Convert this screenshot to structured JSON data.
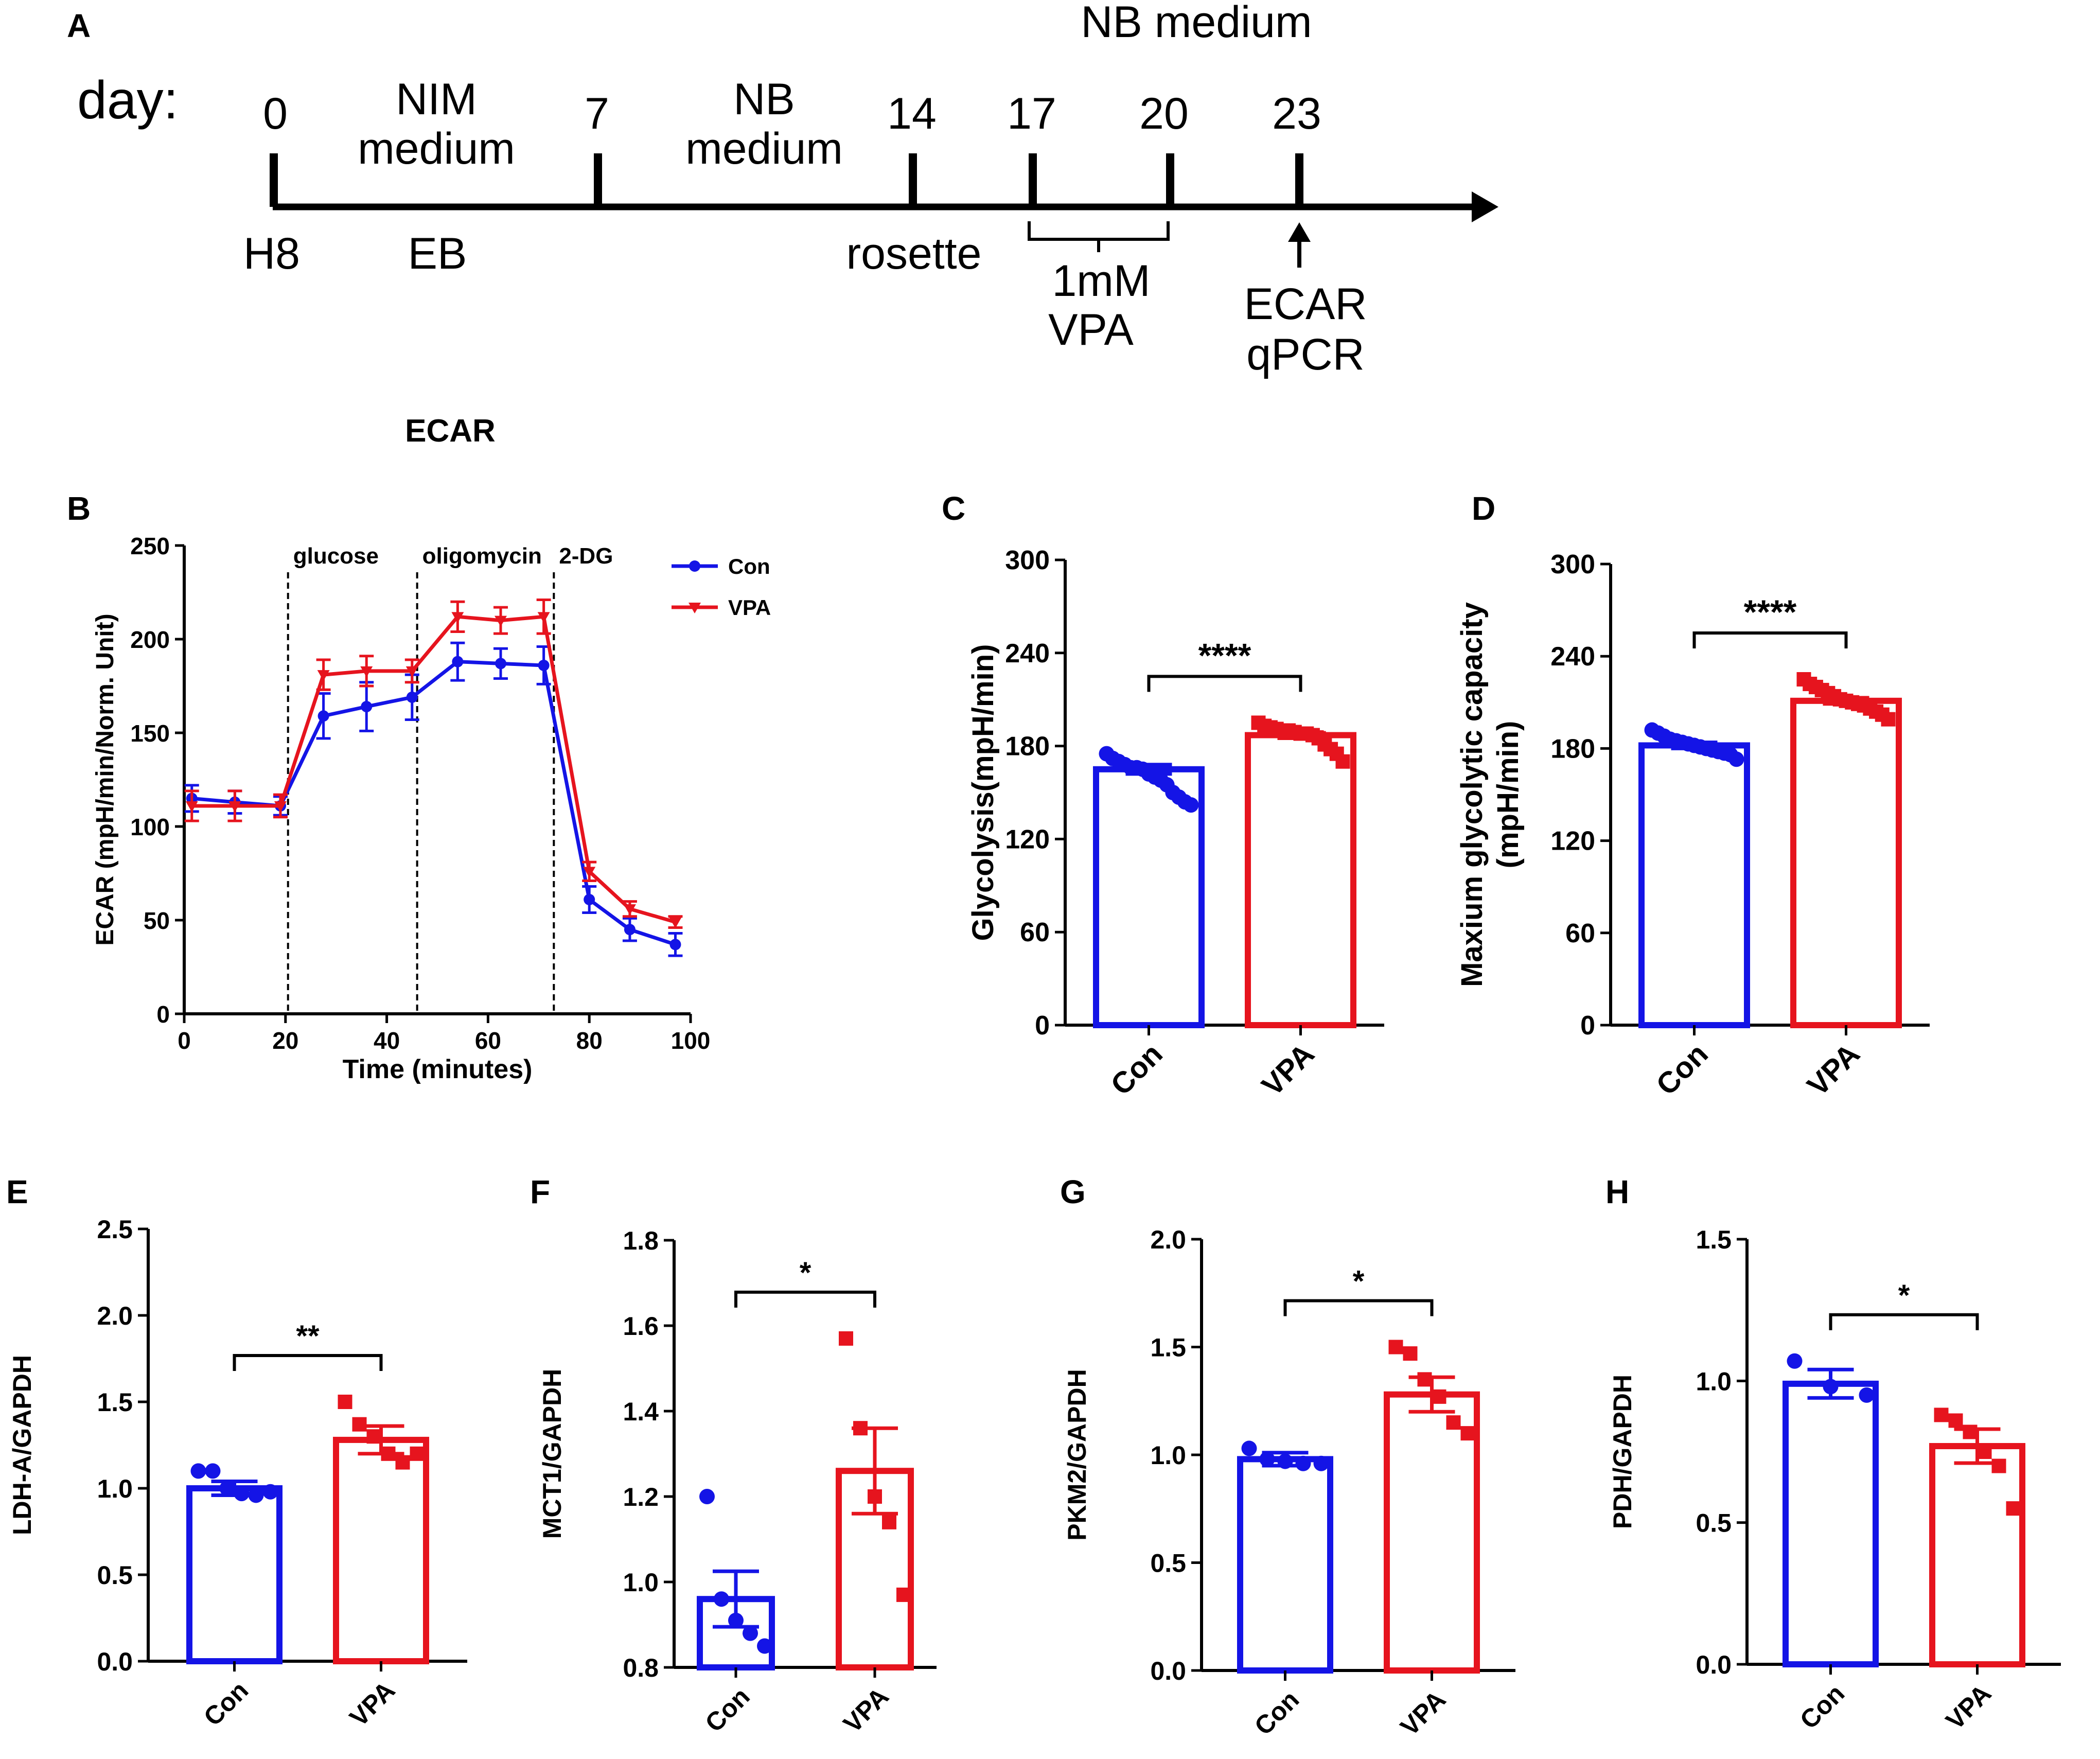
{
  "colors": {
    "con": "#1414e6",
    "vpa": "#e6141e",
    "axis": "#000000"
  },
  "panel_labels": [
    "A",
    "B",
    "C",
    "D",
    "E",
    "F",
    "G",
    "H"
  ],
  "section_title": "ECAR",
  "timeline": {
    "day_label": "day:",
    "days": [
      "0",
      "7",
      "14",
      "17",
      "20",
      "23"
    ],
    "nim_medium": [
      "NIM",
      "medium"
    ],
    "nb_medium_mid": [
      "NB",
      "medium"
    ],
    "nb_medium_top": "NB medium",
    "below_labels": [
      "H8",
      "EB",
      "rosette"
    ],
    "treatment": [
      "1mM",
      "VPA"
    ],
    "assays": [
      "ECAR",
      "qPCR"
    ]
  },
  "chart_data": [
    {
      "panel": "B",
      "type": "line",
      "xlabel": "Time (minutes)",
      "ylabel": "ECAR (mpH/min/Norm. Unit)",
      "xlim": [
        0,
        100
      ],
      "ylim": [
        0,
        250
      ],
      "xticks": [
        0,
        20,
        40,
        60,
        80,
        100
      ],
      "yticks": [
        0,
        50,
        100,
        150,
        200,
        250
      ],
      "x": [
        1.5,
        10,
        19,
        27.5,
        36,
        45,
        54,
        62.5,
        71,
        80,
        88,
        97
      ],
      "series": [
        {
          "name": "Con",
          "values": [
            115,
            113,
            111,
            159,
            164,
            169,
            188,
            187,
            186,
            61,
            45,
            37
          ],
          "errors": [
            7,
            6,
            5,
            12,
            13,
            12,
            10,
            8,
            10,
            7,
            6,
            6
          ]
        },
        {
          "name": "VPA",
          "values": [
            111,
            111,
            111,
            181,
            183,
            183,
            212,
            210,
            212,
            76,
            56,
            49
          ],
          "errors": [
            8,
            8,
            6,
            8,
            8,
            6,
            8,
            7,
            9,
            5,
            4,
            3
          ]
        }
      ],
      "annotations": [
        {
          "label": "glucose",
          "x": 20.5
        },
        {
          "label": "oligomycin",
          "x": 46
        },
        {
          "label": "2-DG",
          "x": 73
        }
      ]
    },
    {
      "panel": "C",
      "type": "bar",
      "categories": [
        "Con",
        "VPA"
      ],
      "values": [
        165,
        187
      ],
      "errors": [
        3,
        2
      ],
      "ylabel": "Glycolysis(mpH/min)",
      "ylim": [
        0,
        300
      ],
      "yticks": [
        0,
        60,
        120,
        180,
        240,
        300
      ],
      "significance": "****",
      "points": [
        [
          175,
          172,
          170,
          168,
          166,
          166,
          165,
          162,
          160,
          158,
          155,
          150,
          147,
          144,
          142
        ],
        [
          195,
          193,
          192,
          191,
          190,
          190,
          189,
          188,
          188,
          187,
          185,
          181,
          178,
          175,
          170
        ]
      ]
    },
    {
      "panel": "D",
      "type": "bar",
      "categories": [
        "Con",
        "VPA"
      ],
      "values": [
        182,
        211
      ],
      "errors": [
        2,
        2
      ],
      "ylabel": "Maxium glycolytic capacity (mpH/min)",
      "ylim": [
        0,
        300
      ],
      "yticks": [
        0,
        60,
        120,
        180,
        240,
        300
      ],
      "significance": "****",
      "points": [
        [
          192,
          190,
          188,
          186,
          185,
          184,
          183,
          182,
          181,
          180,
          179,
          178,
          177,
          176,
          173
        ],
        [
          225,
          222,
          220,
          218,
          216,
          214,
          212,
          211,
          210,
          209,
          208,
          206,
          204,
          202,
          199
        ]
      ]
    },
    {
      "panel": "E",
      "type": "bar",
      "categories": [
        "Con",
        "VPA"
      ],
      "values": [
        1.0,
        1.28
      ],
      "errors": [
        0.04,
        0.08
      ],
      "ylabel": "LDH-A/GAPDH",
      "ylim": [
        0,
        2.5
      ],
      "yticks": [
        "0.0",
        "0.5",
        "1.0",
        "1.5",
        "2.0",
        "2.5"
      ],
      "significance": "**",
      "points": [
        [
          1.1,
          1.1,
          1.0,
          0.97,
          0.96,
          0.98
        ],
        [
          1.5,
          1.37,
          1.3,
          1.2,
          1.15,
          1.2
        ]
      ]
    },
    {
      "panel": "F",
      "type": "bar",
      "categories": [
        "Con",
        "VPA"
      ],
      "values": [
        0.96,
        1.26
      ],
      "errors": [
        0.065,
        0.1
      ],
      "ylabel": "MCT1/GAPDH",
      "ylim": [
        0.8,
        1.8
      ],
      "yticks": [
        "0.8",
        "1.0",
        "1.2",
        "1.4",
        "1.6",
        "1.8"
      ],
      "significance": "*",
      "points": [
        [
          1.2,
          0.96,
          0.91,
          0.88,
          0.85
        ],
        [
          1.57,
          1.36,
          1.2,
          1.14,
          0.97
        ]
      ]
    },
    {
      "panel": "G",
      "type": "bar",
      "categories": [
        "Con",
        "VPA"
      ],
      "values": [
        0.98,
        1.28
      ],
      "errors": [
        0.03,
        0.08
      ],
      "ylabel": "PKM2/GAPDH",
      "ylim": [
        0,
        2.0
      ],
      "yticks": [
        "0.0",
        "0.5",
        "1.0",
        "1.5",
        "2.0"
      ],
      "significance": "*",
      "points": [
        [
          1.03,
          0.98,
          0.97,
          0.96,
          0.96
        ],
        [
          1.5,
          1.47,
          1.35,
          1.27,
          1.15,
          1.1
        ]
      ]
    },
    {
      "panel": "H",
      "type": "bar",
      "categories": [
        "Con",
        "VPA"
      ],
      "values": [
        0.99,
        0.77
      ],
      "errors": [
        0.05,
        0.06
      ],
      "ylabel": "PDH/GAPDH",
      "ylim": [
        0,
        1.5
      ],
      "yticks": [
        "0.0",
        "0.5",
        "1.0",
        "1.5"
      ],
      "significance": "*",
      "points": [
        [
          1.07,
          0.98,
          0.95
        ],
        [
          0.88,
          0.86,
          0.82,
          0.75,
          0.7,
          0.55
        ]
      ]
    }
  ]
}
